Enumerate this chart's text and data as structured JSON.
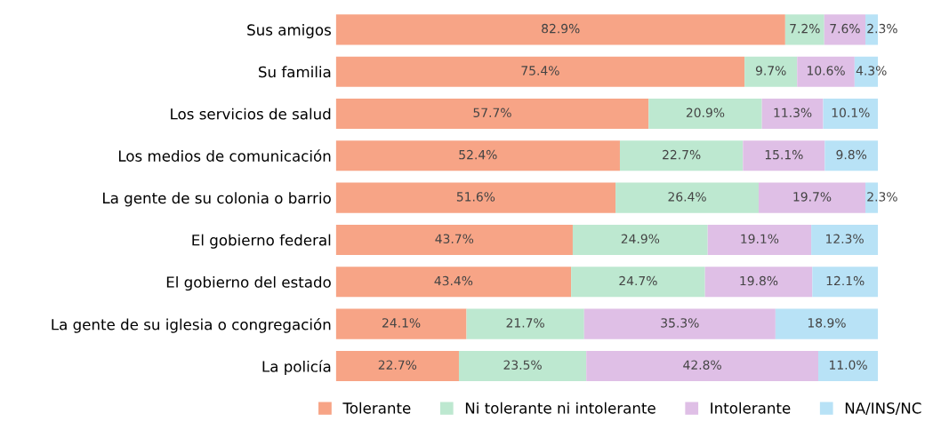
{
  "chart_data": {
    "type": "bar",
    "orientation": "horizontal",
    "stacked": true,
    "legend": "bottom",
    "grid": false,
    "categories": [
      "Sus amigos",
      "Su familia",
      "Los servicios de salud",
      "Los medios de comunicación",
      "La gente de su colonia o barrio",
      "El gobierno federal",
      "El gobierno del estado",
      "La gente de su iglesia o congregación",
      "La policía"
    ],
    "series": [
      {
        "name": "Tolerante",
        "color": "#f7a486",
        "values": [
          82.9,
          75.4,
          57.7,
          52.4,
          51.6,
          43.7,
          43.4,
          24.1,
          22.7
        ],
        "value_labels": [
          "82.9%",
          "75.4%",
          "57.7%",
          "52.4%",
          "51.6%",
          "43.7%",
          "43.4%",
          "24.1%",
          "22.7%"
        ]
      },
      {
        "name": "Ni tolerante ni intolerante",
        "color": "#bde8d0",
        "values": [
          7.2,
          9.7,
          20.9,
          22.7,
          26.4,
          24.9,
          24.7,
          21.7,
          23.5
        ],
        "value_labels": [
          "7.2%",
          "9.7%",
          "20.9%",
          "22.7%",
          "26.4%",
          "24.9%",
          "24.7%",
          "21.7%",
          "23.5%"
        ]
      },
      {
        "name": "Intolerante",
        "color": "#dfbfe6",
        "values": [
          7.6,
          10.6,
          11.3,
          15.1,
          19.7,
          19.1,
          19.8,
          35.3,
          42.8
        ],
        "value_labels": [
          "7.6%",
          "10.6%",
          "11.3%",
          "15.1%",
          "19.7%",
          "19.1%",
          "19.8%",
          "35.3%",
          "42.8%"
        ]
      },
      {
        "name": "NA/INS/NC",
        "color": "#b8e2f6",
        "values": [
          2.3,
          4.3,
          10.1,
          9.8,
          2.3,
          12.3,
          12.1,
          18.9,
          11.0
        ],
        "value_labels": [
          "2.3%",
          "4.3%",
          "10.1%",
          "9.8%",
          "2.3%",
          "12.3%",
          "12.1%",
          "18.9%",
          "11.0%"
        ]
      }
    ]
  }
}
